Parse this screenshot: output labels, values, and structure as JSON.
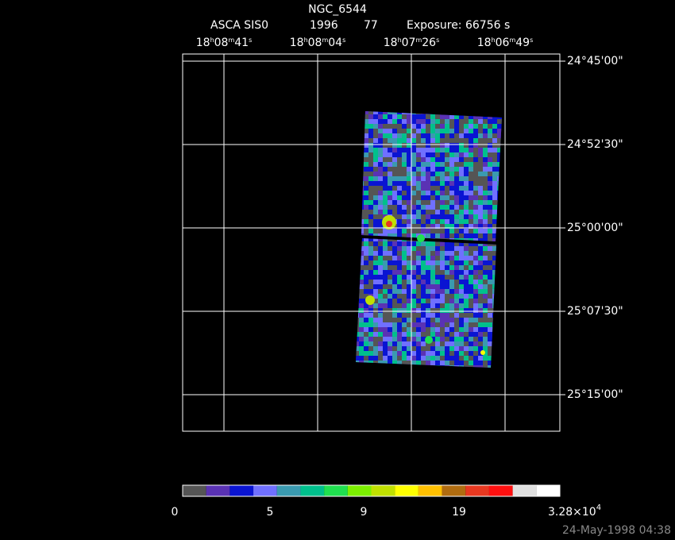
{
  "header": {
    "title": "NGC_6544",
    "instrument": "ASCA SIS0",
    "year": "1996",
    "number": "77",
    "exposure": "Exposure: 66756 s"
  },
  "ra_labels": [
    [
      "18",
      "h",
      "08",
      "m",
      "41",
      "s"
    ],
    [
      "18",
      "h",
      "08",
      "m",
      "04",
      "s"
    ],
    [
      "18",
      "h",
      "07",
      "m",
      "26",
      "s"
    ],
    [
      "18",
      "h",
      "06",
      "m",
      "49",
      "s"
    ]
  ],
  "dec_labels": [
    "24°45'00\"",
    "24°52'30\"",
    "25°00'00\"",
    "25°07'30\"",
    "25°15'00\""
  ],
  "colorbar": {
    "colors": [
      "#555555",
      "#5a32b4",
      "#0a14d2",
      "#7070ff",
      "#3a9ab0",
      "#00c08c",
      "#20e050",
      "#7cf000",
      "#c0e000",
      "#ffff00",
      "#ffc000",
      "#b06c10",
      "#e83820",
      "#ff1010",
      "#e0e0e0",
      "#ffffff"
    ],
    "labels": [
      "0",
      "5",
      "9",
      "19"
    ],
    "max_label": [
      "3.28×10",
      "4"
    ]
  },
  "timestamp": "24-May-1998 04:38"
}
